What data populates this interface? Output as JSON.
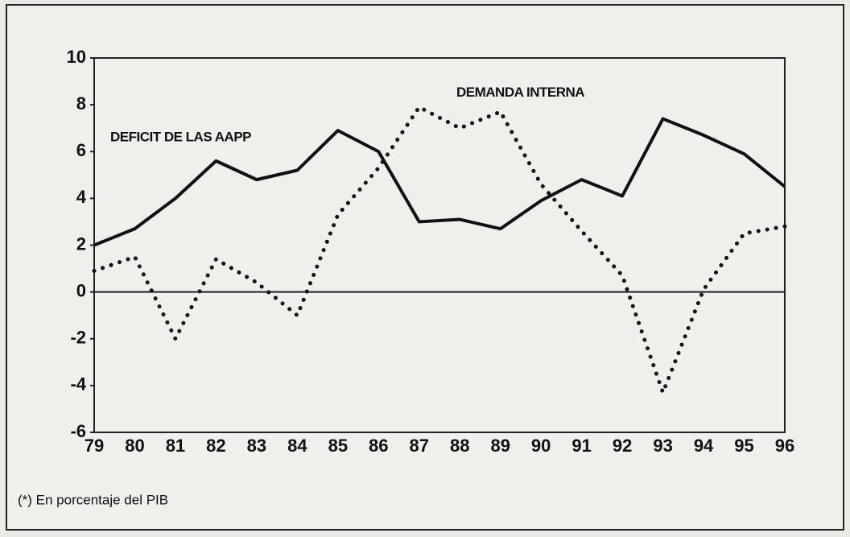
{
  "chart_data": {
    "type": "line",
    "categories": [
      "79",
      "80",
      "81",
      "82",
      "83",
      "84",
      "85",
      "86",
      "87",
      "88",
      "89",
      "90",
      "91",
      "92",
      "93",
      "94",
      "95",
      "96"
    ],
    "series": [
      {
        "name": "DEFICIT DE LAS AAPP",
        "color": "#111111",
        "style": "solid",
        "values": [
          2.0,
          2.7,
          4.0,
          5.6,
          4.8,
          5.2,
          6.9,
          6.0,
          3.0,
          3.1,
          2.7,
          3.9,
          4.8,
          4.1,
          7.4,
          6.7,
          5.9,
          4.5
        ]
      },
      {
        "name": "DEMANDA INTERNA",
        "color": "#111111",
        "style": "dotted",
        "values": [
          0.9,
          1.5,
          -2.0,
          1.4,
          0.4,
          -1.0,
          3.3,
          5.3,
          7.9,
          7.0,
          7.7,
          4.6,
          2.6,
          0.7,
          -4.3,
          0.1,
          2.5,
          2.8
        ]
      }
    ],
    "ylim": [
      -6,
      10
    ],
    "yticks": [
      -6,
      -4,
      -2,
      0,
      2,
      4,
      6,
      8,
      10
    ],
    "note": "(*) En porcentaje del PIB"
  }
}
